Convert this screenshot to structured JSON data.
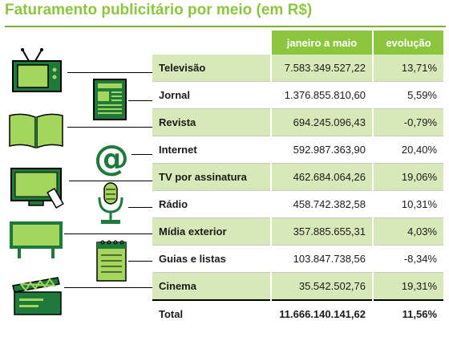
{
  "title": "Faturamento publicitário por meio (em R$)",
  "colors": {
    "accent": "#8cc63f",
    "accent_dark": "#1e7a3a",
    "row_shade": "#d7e9b8"
  },
  "chart_data": {
    "type": "table",
    "title": "Faturamento publicitário por meio (em R$)",
    "columns": [
      "",
      "janeiro a maio",
      "evolução"
    ],
    "rows": [
      {
        "meio": "Televisão",
        "valor": "7.583.349.527,22",
        "evolucao": "13,71%",
        "icon": "tv-icon"
      },
      {
        "meio": "Jornal",
        "valor": "1.376.855.810,60",
        "evolucao": "5,59%",
        "icon": "newspaper-icon"
      },
      {
        "meio": "Revista",
        "valor": "694.245.096,43",
        "evolucao": "-0,79%",
        "icon": "magazine-icon"
      },
      {
        "meio": "Internet",
        "valor": "592.987.363,90",
        "evolucao": "20,40%",
        "icon": "at-sign-icon"
      },
      {
        "meio": "TV por assinatura",
        "valor": "462.684.064,26",
        "evolucao": "19,06%",
        "icon": "flat-tv-remote-icon"
      },
      {
        "meio": "Rádio",
        "valor": "458.742.382,58",
        "evolucao": "10,31%",
        "icon": "microphone-icon"
      },
      {
        "meio": "Mídia exterior",
        "valor": "357.885.655,31",
        "evolucao": "4,03%",
        "icon": "billboard-icon"
      },
      {
        "meio": "Guias e listas",
        "valor": "103.847.738,56",
        "evolucao": "-8,34%",
        "icon": "notepad-icon"
      },
      {
        "meio": "Cinema",
        "valor": "35.542.502,76",
        "evolucao": "19,31%",
        "icon": "clapperboard-icon"
      }
    ],
    "total": {
      "meio": "Total",
      "valor": "11.666.140.141,62",
      "evolucao": "11,56%"
    },
    "values": [
      7583349527.22,
      1376855810.6,
      694245096.43,
      592987363.9,
      462684064.26,
      458742382.58,
      357885655.31,
      103847738.56,
      35542502.76
    ],
    "evolution_percent": [
      13.71,
      5.59,
      -0.79,
      20.4,
      19.06,
      10.31,
      4.03,
      -8.34,
      19.31
    ]
  }
}
